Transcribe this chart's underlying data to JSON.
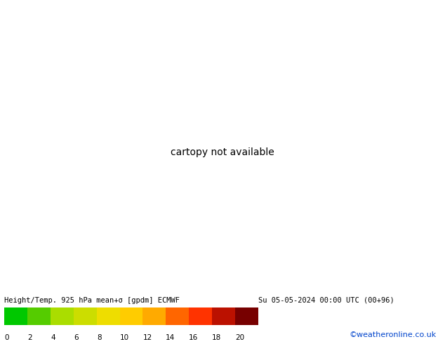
{
  "title": "Height/Temp. 925 hPa mean+σ [gpdm] ECMWF",
  "date_str": "Su 05-05-2024 00:00 UTC (00+96)",
  "credit": "©weatheronline.co.uk",
  "colorbar_values": [
    0,
    2,
    4,
    6,
    8,
    10,
    12,
    14,
    16,
    18,
    20
  ],
  "colorbar_colors": [
    "#00c800",
    "#55cc00",
    "#aadd00",
    "#ccdd00",
    "#eedd00",
    "#ffcc00",
    "#ffaa00",
    "#ff6600",
    "#ff3300",
    "#bb1100",
    "#770000"
  ],
  "background_color": "#55dd00",
  "extent": [
    3.0,
    18.0,
    45.5,
    56.5
  ],
  "field_base": 7.0,
  "figsize": [
    6.34,
    4.9
  ],
  "dpi": 100,
  "germany_border_color": "#000000",
  "other_border_color": "#888888",
  "germany_border_lw": 1.2,
  "other_border_lw": 0.7,
  "contour_lw": 1.5,
  "contour_label_lon": 5.2,
  "contour_label_lat": 48.3
}
